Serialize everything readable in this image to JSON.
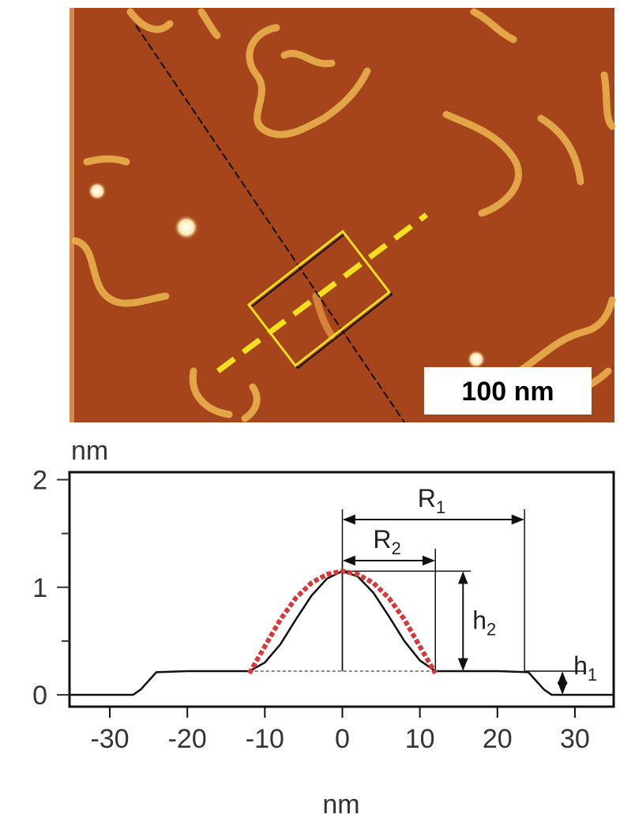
{
  "image": {
    "scale_bar_label": "100 nm"
  },
  "chart_data": {
    "type": "line",
    "ylabel": "nm",
    "xlabel": "nm",
    "xlim": [
      -35.2,
      35
    ],
    "ylim": [
      -0.11,
      2.07
    ],
    "xticks": [
      -30,
      -20,
      -10,
      0,
      10,
      20,
      30
    ],
    "yticks": [
      0,
      1,
      2
    ],
    "minor_yticks": [
      0.5,
      1.5
    ],
    "series": [
      {
        "color": "#111111",
        "style": "solid",
        "x": [
          -35.2,
          -27,
          -26,
          -24,
          -20,
          -12,
          -10,
          -8,
          -6,
          -4,
          -2,
          0,
          2,
          4,
          6,
          8,
          10,
          12,
          20,
          24,
          26,
          27,
          35
        ],
        "values": [
          0,
          0,
          0.05,
          0.21,
          0.22,
          0.22,
          0.3,
          0.47,
          0.7,
          0.92,
          1.08,
          1.15,
          1.1,
          0.95,
          0.73,
          0.5,
          0.32,
          0.22,
          0.22,
          0.21,
          0.05,
          0,
          0
        ]
      },
      {
        "color": "#d9383a",
        "style": "dashed",
        "x": [
          -12,
          -10,
          -8,
          -6,
          -4,
          -2,
          0,
          2,
          4,
          6,
          8,
          10,
          12
        ],
        "values": [
          0.2,
          0.45,
          0.7,
          0.9,
          1.04,
          1.12,
          1.15,
          1.12,
          1.04,
          0.9,
          0.7,
          0.45,
          0.2
        ]
      }
    ],
    "annotations": [
      {
        "text": "R",
        "subscript": "1",
        "x": [
          0,
          23.5
        ]
      },
      {
        "text": "R",
        "subscript": "2",
        "x": [
          0,
          12
        ]
      },
      {
        "text": "h",
        "subscript": "2",
        "y": [
          0.22,
          1.15
        ]
      },
      {
        "text": "h",
        "subscript": "1",
        "y": [
          0,
          0.22
        ]
      }
    ]
  }
}
